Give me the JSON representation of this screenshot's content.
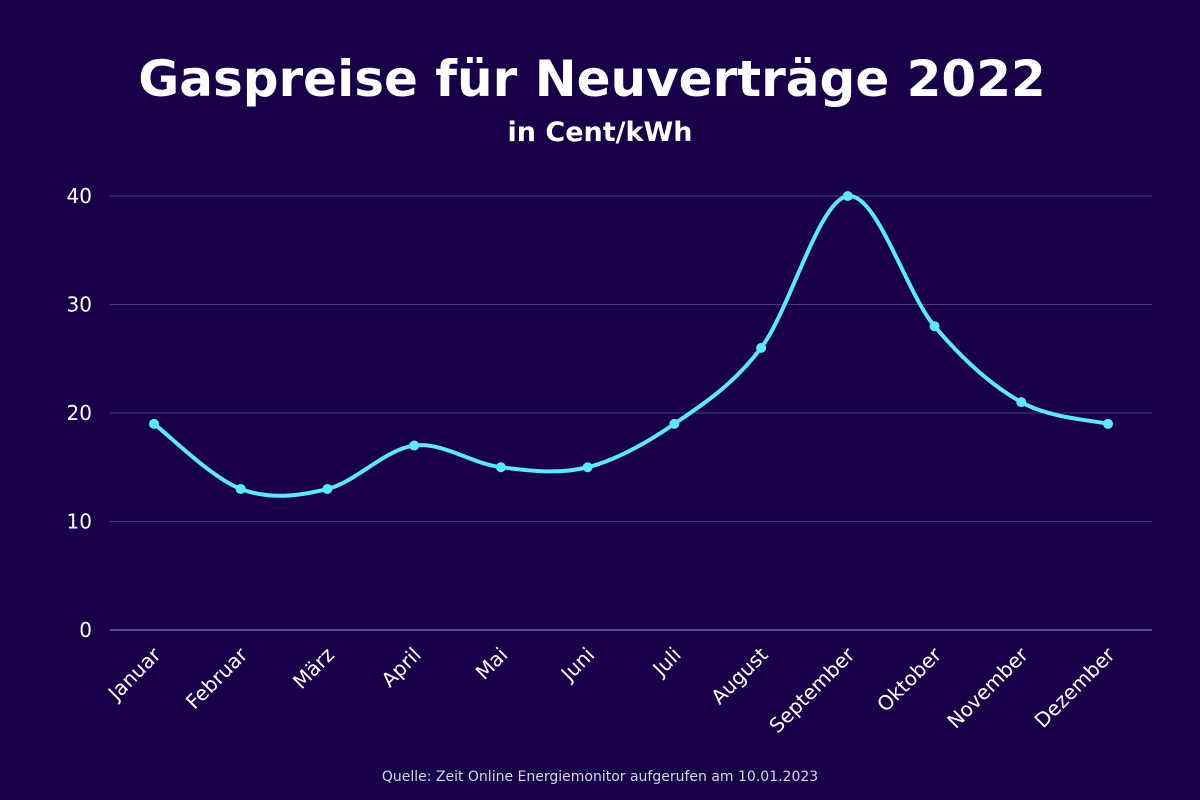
{
  "chart_data": {
    "type": "line",
    "title": "Gaspreise für Neuverträge 2022",
    "subtitle": "in Cent/kWh",
    "categories": [
      "Januar",
      "Februar",
      "März",
      "April",
      "Mai",
      "Juni",
      "Juli",
      "August",
      "September",
      "Oktober",
      "November",
      "Dezember"
    ],
    "values": [
      19,
      13,
      13,
      17,
      15,
      15,
      19,
      26,
      40,
      28,
      21,
      19
    ],
    "ylim": [
      0,
      40
    ],
    "yticks": [
      0,
      10,
      20,
      30,
      40
    ],
    "grid": true,
    "smooth": true,
    "line_color": "#5ee8fa",
    "background_color": "#170047",
    "grid_color": "#4a3a7a",
    "source": "Quelle: Zeit Online Energiemonitor aufgerufen am 10.01.2023"
  }
}
